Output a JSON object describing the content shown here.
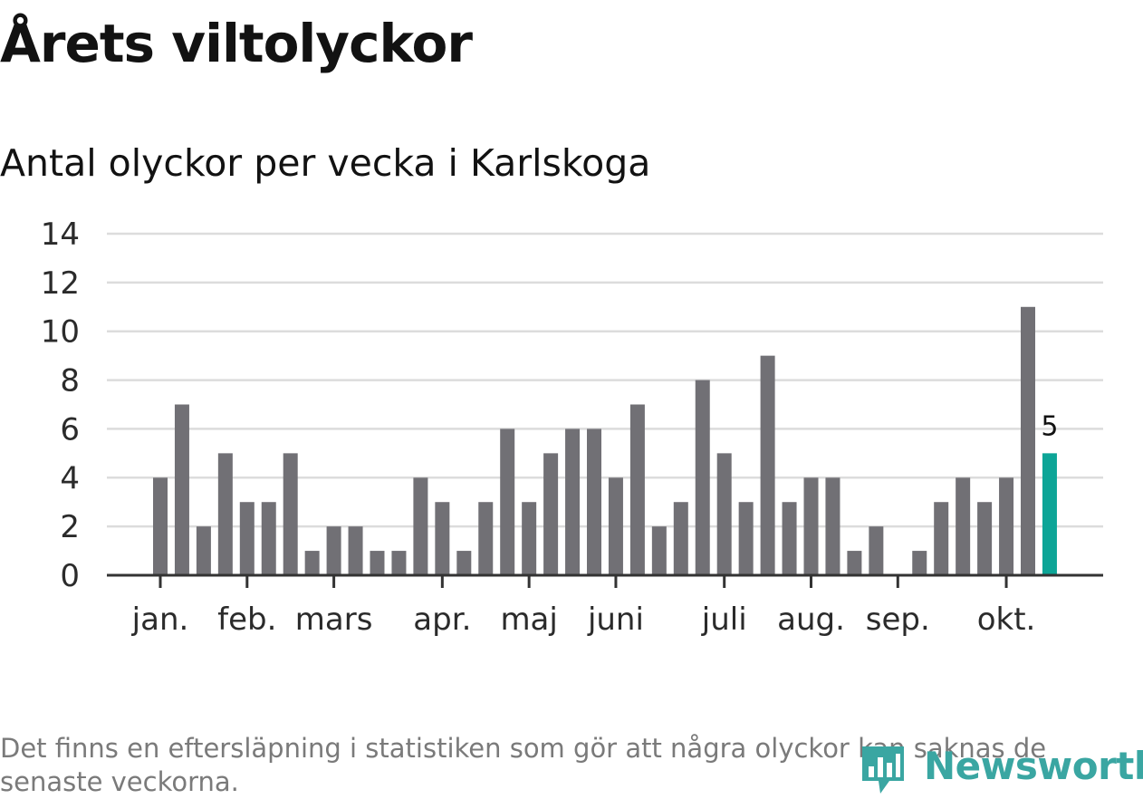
{
  "title": "Årets viltolyckor",
  "subtitle": "Antal olyckor per vecka i Karlskoga",
  "footnote": "Det finns en eftersläpning i statistiken som gör att några olyckor kan saknas de senaste veckorna.",
  "logo": {
    "text": "Newsworthy",
    "icon": "bar-chart-pin-icon"
  },
  "colors": {
    "bar": "#717075",
    "highlight": "#0da597",
    "grid": "#dcdcdc",
    "axis": "#333333",
    "text": "#121212",
    "brand": "#3aa6a2"
  },
  "chart_data": {
    "type": "bar",
    "x": [
      1,
      2,
      3,
      4,
      5,
      6,
      7,
      8,
      9,
      10,
      11,
      12,
      13,
      14,
      15,
      16,
      17,
      18,
      19,
      20,
      21,
      22,
      23,
      24,
      25,
      26,
      27,
      28,
      29,
      30,
      31,
      32,
      33,
      34,
      35,
      36,
      37,
      38,
      39,
      40,
      41,
      42
    ],
    "values": [
      4,
      7,
      2,
      5,
      3,
      3,
      5,
      1,
      2,
      2,
      1,
      1,
      4,
      3,
      1,
      3,
      6,
      3,
      5,
      6,
      6,
      4,
      7,
      2,
      3,
      8,
      5,
      3,
      9,
      3,
      4,
      4,
      1,
      2,
      0,
      1,
      3,
      4,
      3,
      4,
      11,
      5
    ],
    "highlight_index": 41,
    "highlight_label": "5",
    "ylim": [
      0,
      14
    ],
    "yticks": [
      0,
      2,
      4,
      6,
      8,
      10,
      12,
      14
    ],
    "xticks": [
      {
        "label": "jan.",
        "week": 1
      },
      {
        "label": "feb.",
        "week": 5
      },
      {
        "label": "mars",
        "week": 9
      },
      {
        "label": "apr.",
        "week": 14
      },
      {
        "label": "maj",
        "week": 18
      },
      {
        "label": "juni",
        "week": 22
      },
      {
        "label": "juli",
        "week": 27
      },
      {
        "label": "aug.",
        "week": 31
      },
      {
        "label": "sep.",
        "week": 35
      },
      {
        "label": "okt.",
        "week": 40
      }
    ],
    "grid": true
  }
}
